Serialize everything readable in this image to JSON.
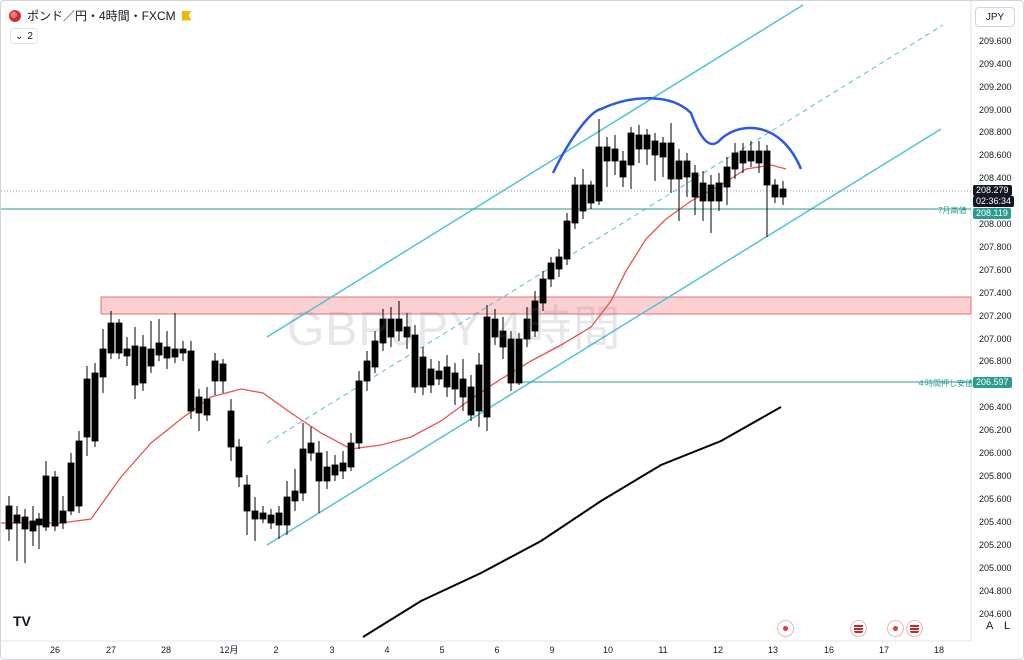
{
  "header": {
    "symbol_title": "ポンド／円・4時間・FXCM",
    "indicator_count": "2"
  },
  "currency": "JPY",
  "watermark": "GBPJPY 4時間",
  "price_axis": {
    "labels": [
      "209.600",
      "209.400",
      "209.200",
      "209.000",
      "208.800",
      "208.600",
      "208.400",
      "208.000",
      "207.800",
      "207.600",
      "207.400",
      "207.200",
      "207.000",
      "206.800",
      "206.400",
      "206.200",
      "206.000",
      "205.800",
      "205.600",
      "205.400",
      "205.200",
      "205.000",
      "204.800",
      "204.600"
    ]
  },
  "tags": {
    "last_price": "208.279",
    "countdown": "02:36:34",
    "july_high_value": "208.119",
    "july_high_label": "7月高値",
    "pullback_value": "206.597",
    "pullback_label": "４時間押し安値"
  },
  "date_axis": {
    "labels": [
      "26",
      "27",
      "28",
      "12月",
      "2",
      "3",
      "4",
      "5",
      "6",
      "9",
      "10",
      "11",
      "12",
      "13",
      "16",
      "17",
      "18"
    ]
  },
  "controls": {
    "log_label": "A",
    "log2_label": "L"
  },
  "colors": {
    "bull": "#ffffff",
    "bear": "#000000",
    "channel": "#4fc3d9",
    "ma_red": "#e5534b",
    "ma_black": "#000000",
    "zone": "rgba(240,120,130,0.35)",
    "hs_line": "#2b59e0",
    "level_line": "#2a9d8f"
  },
  "icons": [
    "tradingview-logo-icon",
    "event-icon",
    "flag-event-icon"
  ]
}
